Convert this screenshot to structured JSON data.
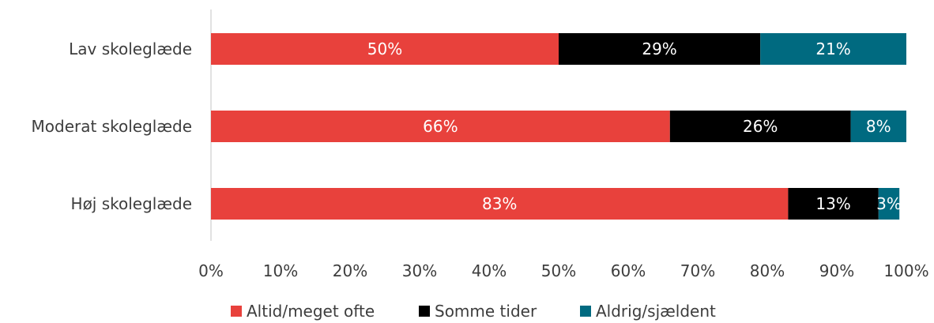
{
  "chart_data": {
    "type": "bar",
    "orientation": "horizontal",
    "stacked": true,
    "categories": [
      "Lav skoleglæde",
      "Moderat skoleglæde",
      "Høj skoleglæde"
    ],
    "series": [
      {
        "name": "Altid/meget ofte",
        "color": "#e8413c",
        "values": [
          50,
          66,
          83
        ],
        "labels": [
          "50%",
          "66%",
          "83%"
        ]
      },
      {
        "name": "Somme tider",
        "color": "#000000",
        "values": [
          29,
          26,
          13
        ],
        "labels": [
          "29%",
          "26%",
          "13%"
        ]
      },
      {
        "name": "Aldrig/sjældent",
        "color": "#006a80",
        "values": [
          21,
          8,
          3
        ],
        "labels": [
          "21%",
          "8%",
          "3%"
        ]
      }
    ],
    "xlim": [
      0,
      100
    ],
    "xticks": [
      "0%",
      "10%",
      "20%",
      "30%",
      "40%",
      "50%",
      "60%",
      "70%",
      "80%",
      "90%",
      "100%"
    ],
    "grid": false,
    "legend_position": "bottom",
    "title": "",
    "xlabel": "",
    "ylabel": ""
  }
}
